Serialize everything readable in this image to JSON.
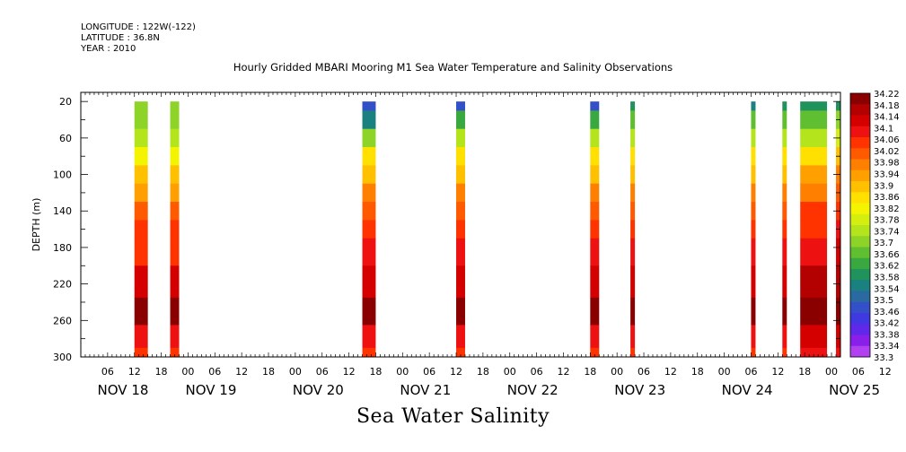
{
  "header": {
    "longitude": "LONGITUDE : 122W(-122)",
    "latitude": "LATITUDE : 36.8N",
    "year": "YEAR : 2010",
    "title": "Hourly Gridded MBARI Mooring M1 Sea Water Temperature and Salinity Observations"
  },
  "footer": {
    "variable_title": "Sea Water Salinity"
  },
  "chart_data": {
    "type": "heatmap",
    "title": "Hourly Gridded MBARI Mooring M1 Sea Water Temperature and Salinity Observations",
    "subtitle": "Sea Water Salinity",
    "ylabel": "DEPTH (m)",
    "xlabel": "",
    "y_reversed": true,
    "ylim": [
      300,
      10
    ],
    "y_ticks": [
      20,
      60,
      100,
      140,
      180,
      220,
      260,
      300
    ],
    "x_range_hours": [
      0,
      170
    ],
    "x_hour_ticks": [
      "06",
      "12",
      "18",
      "00",
      "06",
      "12",
      "18",
      "00",
      "06",
      "12",
      "18",
      "00",
      "06",
      "12",
      "18",
      "00",
      "06",
      "12",
      "18",
      "00",
      "06",
      "12",
      "18",
      "00",
      "06",
      "12",
      "18",
      "00",
      "06",
      "12",
      "18",
      "00"
    ],
    "x_date_labels": [
      "NOV 18",
      "NOV 19",
      "NOV 20",
      "NOV 21",
      "NOV 22",
      "NOV 23",
      "NOV 24",
      "NOV 25"
    ],
    "colorbar": {
      "labels": [
        "34.22",
        "34.18",
        "34.14",
        "34.1",
        "34.06",
        "34.02",
        "33.98",
        "33.94",
        "33.9",
        "33.86",
        "33.82",
        "33.78",
        "33.74",
        "33.7",
        "33.66",
        "33.62",
        "33.58",
        "33.54",
        "33.5",
        "33.46",
        "33.42",
        "33.38",
        "33.34",
        "33.3"
      ],
      "colors": [
        "#8a0000",
        "#b30000",
        "#d40000",
        "#ee1111",
        "#ff3300",
        "#ff5a00",
        "#ff8000",
        "#ffa000",
        "#ffc000",
        "#ffe000",
        "#f4f400",
        "#d4ee10",
        "#b4e41c",
        "#8ed428",
        "#5fbf30",
        "#3aa840",
        "#20925c",
        "#1a8080",
        "#2a6aa0",
        "#3450c8",
        "#4038e0",
        "#6028e8",
        "#8820ea",
        "#b040f0"
      ]
    },
    "series": [
      {
        "start_hour": 12,
        "end_hour": 15,
        "profile": [
          33.68,
          33.7,
          33.74,
          33.82,
          33.9,
          33.94,
          34.0,
          34.04,
          34.08,
          34.16,
          34.2,
          34.1,
          34.08
        ]
      },
      {
        "start_hour": 20,
        "end_hour": 22,
        "profile": [
          33.68,
          33.7,
          33.74,
          33.82,
          33.9,
          33.94,
          34.0,
          34.04,
          34.08,
          34.16,
          34.2,
          34.1,
          34.08
        ]
      },
      {
        "start_hour": 63,
        "end_hour": 66,
        "profile": [
          33.46,
          33.54,
          33.7,
          33.84,
          33.9,
          33.96,
          34.02,
          34.06,
          34.1,
          34.16,
          34.2,
          34.12,
          34.08
        ]
      },
      {
        "start_hour": 84,
        "end_hour": 86,
        "profile": [
          33.46,
          33.62,
          33.74,
          33.84,
          33.9,
          33.96,
          34.02,
          34.06,
          34.1,
          34.16,
          34.2,
          34.12,
          34.08
        ]
      },
      {
        "start_hour": 114,
        "end_hour": 116,
        "profile": [
          33.46,
          33.62,
          33.74,
          33.84,
          33.9,
          33.96,
          34.02,
          34.06,
          34.1,
          34.16,
          34.2,
          34.12,
          34.08
        ]
      },
      {
        "start_hour": 123,
        "end_hour": 124,
        "profile": [
          33.56,
          33.64,
          33.74,
          33.84,
          33.9,
          33.96,
          34.02,
          34.06,
          34.1,
          34.16,
          34.2,
          34.12,
          34.08
        ]
      },
      {
        "start_hour": 150,
        "end_hour": 151,
        "profile": [
          33.54,
          33.64,
          33.74,
          33.84,
          33.9,
          33.96,
          34.02,
          34.06,
          34.1,
          34.16,
          34.2,
          34.12,
          34.08
        ]
      },
      {
        "start_hour": 157,
        "end_hour": 158,
        "profile": [
          33.56,
          33.64,
          33.74,
          33.84,
          33.9,
          33.96,
          34.02,
          34.06,
          34.1,
          34.16,
          34.2,
          34.12,
          34.08
        ]
      },
      {
        "start_hour": 161,
        "end_hour": 167,
        "profile": [
          33.58,
          33.66,
          33.74,
          33.86,
          33.92,
          33.98,
          34.04,
          34.08,
          34.12,
          34.18,
          34.22,
          34.16,
          34.1
        ]
      },
      {
        "start_hour": 169,
        "end_hour": 170,
        "profile": [
          33.56,
          33.7,
          33.8,
          33.9,
          33.96,
          34.02,
          34.06,
          34.1,
          34.14,
          34.18,
          34.2,
          34.14,
          34.1
        ]
      }
    ],
    "profile_depths": [
      20,
      40,
      60,
      80,
      100,
      120,
      140,
      160,
      180,
      220,
      250,
      280,
      300
    ]
  }
}
